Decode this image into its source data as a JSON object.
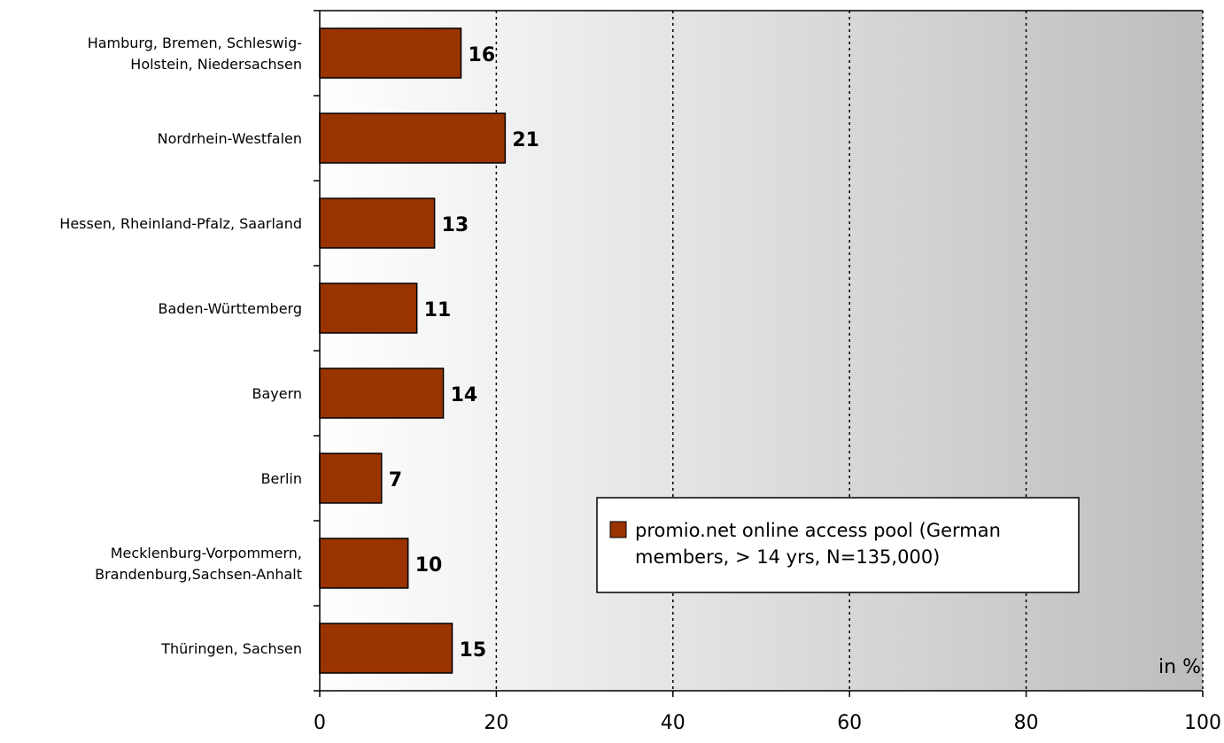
{
  "chart_data": {
    "type": "bar",
    "orientation": "horizontal",
    "categories": [
      [
        "Hamburg, Bremen, Schleswig-",
        "Holstein, Niedersachsen"
      ],
      [
        "Nordrhein-Westfalen"
      ],
      [
        "Hessen, Rheinland-Pfalz, Saarland"
      ],
      [
        "Baden-Württemberg"
      ],
      [
        "Bayern"
      ],
      [
        "Berlin"
      ],
      [
        "Mecklenburg-Vorpommern,",
        "Brandenburg,Sachsen-Anhalt"
      ],
      [
        "Thüringen, Sachsen"
      ]
    ],
    "series": [
      {
        "name": "promio.net online access pool (German members, > 14 yrs, N=135,000)",
        "legend_lines": [
          "promio.net online access pool (German",
          "members, > 14 yrs, N=135,000)"
        ],
        "values": [
          16,
          21,
          13,
          11,
          14,
          7,
          10,
          15
        ],
        "color": "#993300"
      }
    ],
    "xlim": [
      0,
      100
    ],
    "xticks": [
      "0",
      "20",
      "40",
      "60",
      "80",
      "100"
    ],
    "unit_label": "in %",
    "grid": "vertical dotted",
    "legend_position": "bottom-center",
    "background": "gradient-white-to-gray"
  }
}
